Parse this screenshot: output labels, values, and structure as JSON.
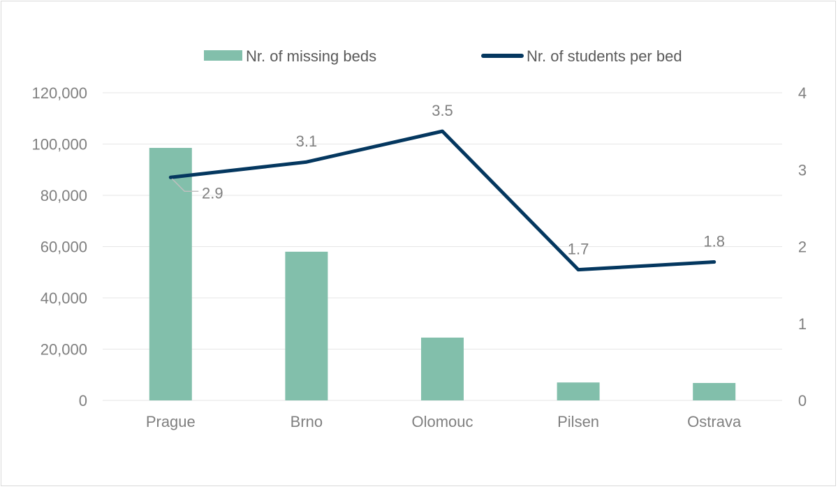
{
  "chart_data": {
    "type": "bar",
    "categories": [
      "Prague",
      "Brno",
      "Olomouc",
      "Pilsen",
      "Ostrava"
    ],
    "series": [
      {
        "name": "Nr. of missing beds",
        "type": "bar",
        "axis": "left",
        "values": [
          98500,
          58000,
          24500,
          7000,
          6800
        ]
      },
      {
        "name": "Nr. of students per bed",
        "type": "line",
        "axis": "right",
        "values": [
          2.9,
          3.1,
          3.5,
          1.7,
          1.8
        ],
        "labels": [
          "2.9",
          "3.1",
          "3.5",
          "1.7",
          "1.8"
        ]
      }
    ],
    "y_left": {
      "min": 0,
      "max": 120000,
      "step": 20000,
      "ticks": [
        "0",
        "20,000",
        "40,000",
        "60,000",
        "80,000",
        "100,000",
        "120,000"
      ]
    },
    "y_right": {
      "min": 0,
      "max": 4,
      "step": 1,
      "ticks": [
        "0",
        "1",
        "2",
        "3",
        "4"
      ]
    },
    "grid": true,
    "legend": "top-center",
    "colors": {
      "bar": "#82bfab",
      "line": "#04375f",
      "text": "#7f7f7f",
      "grid": "#e6e6e6"
    }
  }
}
